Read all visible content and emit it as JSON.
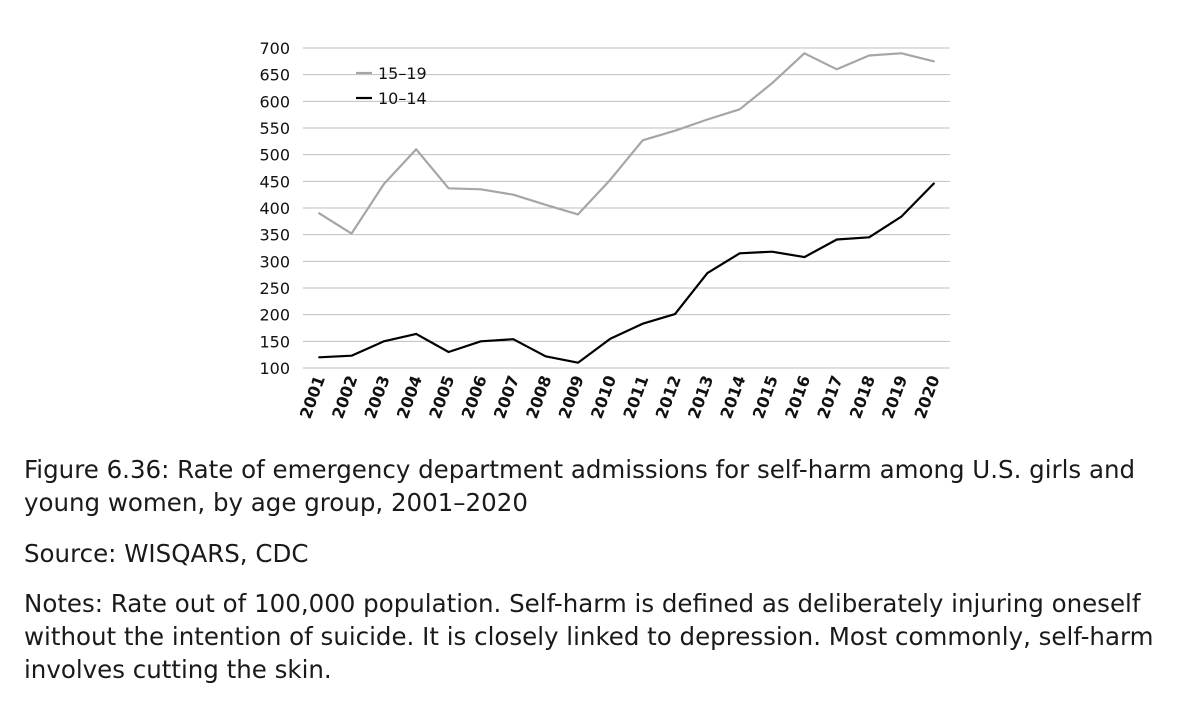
{
  "chart_data": {
    "type": "line",
    "categories": [
      "2001",
      "2002",
      "2003",
      "2004",
      "2005",
      "2006",
      "2007",
      "2008",
      "2009",
      "2010",
      "2011",
      "2012",
      "2013",
      "2014",
      "2015",
      "2016",
      "2017",
      "2018",
      "2019",
      "2020"
    ],
    "series": [
      {
        "name": "15–19",
        "color": "#a6a6a6",
        "values": [
          390,
          352,
          445,
          510,
          437,
          435,
          425,
          406,
          388,
          453,
          527,
          545,
          566,
          585,
          634,
          690,
          660,
          686,
          690,
          675
        ]
      },
      {
        "name": "10–14",
        "color": "#000000",
        "values": [
          120,
          123,
          150,
          164,
          130,
          150,
          154,
          122,
          110,
          155,
          183,
          201,
          278,
          315,
          318,
          308,
          341,
          345,
          384,
          446
        ]
      }
    ],
    "ylim": [
      100,
      700
    ],
    "yticks": [
      "100",
      "150",
      "200",
      "250",
      "300",
      "350",
      "400",
      "450",
      "500",
      "550",
      "600",
      "650",
      "700"
    ],
    "grid": true,
    "legend_position": "top-left"
  },
  "caption": {
    "figure": "Figure 6.36: Rate of emergency department admissions for self-harm among U.S. girls and young women, by age group, 2001–2020",
    "source": "Source: WISQARS, CDC",
    "notes": "Notes: Rate out of 100,000 population. Self-harm is defined as deliberately injuring oneself without the intention of suicide. It is closely linked to depression. Most commonly, self-harm involves cutting the skin."
  }
}
